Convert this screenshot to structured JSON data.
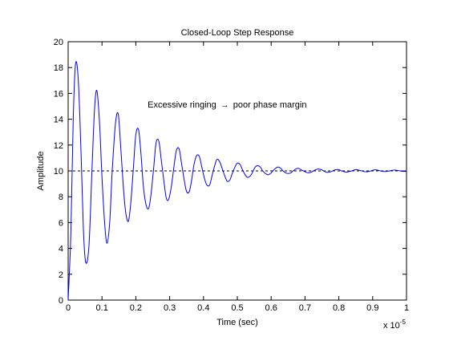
{
  "chart_data": {
    "type": "line",
    "title": "Closed-Loop Step Response",
    "xlabel": "Time (sec)",
    "ylabel": "Amplitude",
    "x_multiplier": "x 10",
    "x_multiplier_exp": "-5",
    "xlim": [
      0,
      1
    ],
    "ylim": [
      0,
      20
    ],
    "xticks": [
      "0",
      "0.1",
      "0.2",
      "0.3",
      "0.4",
      "0.5",
      "0.6",
      "0.7",
      "0.8",
      "0.9",
      "1"
    ],
    "yticks": [
      "0",
      "2",
      "4",
      "6",
      "8",
      "10",
      "12",
      "14",
      "16",
      "18",
      "20"
    ],
    "grid": false,
    "annotation": {
      "text_before": "Excessive ringing",
      "arrow": "→",
      "text_after": "poor phase margin",
      "x": 0.235,
      "y": 14.9
    },
    "reference_line": {
      "y": 10,
      "style": "dashed",
      "color": "#000000"
    },
    "series": [
      {
        "color": "#0000ff",
        "x": [
          0,
          0.008,
          0.015,
          0.022,
          0.03,
          0.038,
          0.045,
          0.052,
          0.0615,
          0.07,
          0.078,
          0.085,
          0.093,
          0.1,
          0.108,
          0.115,
          0.123,
          0.13,
          0.14,
          0.148,
          0.155,
          0.163,
          0.17,
          0.178,
          0.185,
          0.193,
          0.2,
          0.208,
          0.215,
          0.222,
          0.23,
          0.238,
          0.245,
          0.253,
          0.26,
          0.268,
          0.275,
          0.283,
          0.29,
          0.297,
          0.305,
          0.313,
          0.32,
          0.328,
          0.335,
          0.343,
          0.35,
          0.358,
          0.365,
          0.372,
          0.38,
          0.388,
          0.395,
          0.403,
          0.41,
          0.418,
          0.425,
          0.433,
          0.44,
          0.448,
          0.455,
          0.463,
          0.47,
          0.478,
          0.485,
          0.493,
          0.5,
          0.508,
          0.515,
          0.523,
          0.53,
          0.538,
          0.545,
          0.553,
          0.56,
          0.568,
          0.575,
          0.583,
          0.59,
          0.598,
          0.605,
          0.613,
          0.62,
          0.628,
          0.635,
          0.643,
          0.65,
          0.658,
          0.665,
          0.673,
          0.68,
          0.688,
          0.695,
          0.703,
          0.71,
          0.718,
          0.725,
          0.733,
          0.74,
          0.748,
          0.755,
          0.763,
          0.77,
          0.778,
          0.785,
          0.793,
          0.8,
          0.808,
          0.815,
          0.823,
          0.83,
          0.838,
          0.845,
          0.853,
          0.86,
          0.868,
          0.875,
          0.883,
          0.89,
          0.898,
          0.905,
          0.913,
          0.92,
          0.928,
          0.935,
          0.943,
          0.95,
          0.958,
          0.965,
          0.973,
          0.98,
          0.988,
          0.995,
          1.0
        ],
        "y": [
          0,
          5.2,
          14.0,
          18.3,
          17.0,
          11.5,
          5.5,
          2.9,
          4.2,
          9.8,
          14.8,
          16.2,
          13.6,
          9.5,
          5.9,
          4.4,
          6.1,
          9.9,
          13.7,
          14.4,
          12.0,
          8.8,
          6.8,
          6.1,
          7.5,
          10.3,
          12.8,
          13.2,
          11.4,
          8.9,
          7.4,
          7.1,
          8.2,
          10.3,
          12.2,
          12.3,
          10.9,
          9.2,
          7.9,
          7.8,
          8.8,
          10.4,
          11.6,
          11.7,
          10.6,
          9.3,
          8.4,
          8.4,
          9.3,
          10.5,
          11.2,
          11.1,
          10.3,
          9.4,
          8.9,
          8.9,
          9.6,
          10.4,
          10.9,
          10.7,
          10.2,
          9.6,
          9.2,
          9.3,
          9.8,
          10.3,
          10.6,
          10.5,
          10.1,
          9.7,
          9.5,
          9.6,
          9.9,
          10.3,
          10.4,
          10.3,
          10.0,
          9.8,
          9.7,
          9.8,
          10.0,
          10.2,
          10.3,
          10.2,
          10.0,
          9.85,
          9.8,
          9.85,
          10.0,
          10.15,
          10.2,
          10.1,
          10.0,
          9.9,
          9.85,
          9.9,
          10.0,
          10.1,
          10.15,
          10.1,
          10.0,
          9.9,
          9.9,
          9.95,
          10.05,
          10.1,
          10.1,
          10.0,
          9.95,
          9.9,
          9.95,
          10.0,
          10.07,
          10.1,
          10.05,
          10.0,
          9.95,
          9.93,
          9.97,
          10.03,
          10.08,
          10.07,
          10.02,
          9.97,
          9.95,
          9.97,
          10.0,
          10.05,
          10.06,
          10.04,
          10.0,
          9.97,
          9.96,
          9.98
        ]
      }
    ]
  }
}
